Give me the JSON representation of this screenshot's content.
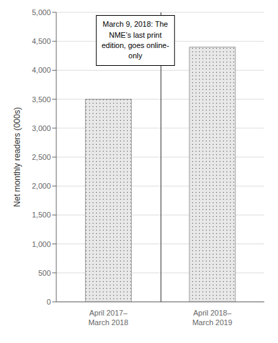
{
  "chart_data": {
    "type": "bar",
    "categories": [
      "April 2017–\nMarch 2018",
      "April 2018–\nMarch 2019"
    ],
    "values": [
      3500,
      4400
    ],
    "color": "#e8e8e8",
    "ylabel": "Net monthly readers (000s)",
    "ylim": [
      0,
      5000
    ],
    "yticks": [
      0,
      500,
      {
        "value": 1000,
        "label": "1,000"
      },
      {
        "value": 1500,
        "label": "1,500"
      },
      {
        "value": 2000,
        "label": "2,000"
      },
      {
        "value": 2500,
        "label": "2,500"
      },
      {
        "value": 3000,
        "label": "3,000"
      },
      {
        "value": 3500,
        "label": "3,500"
      },
      {
        "value": 4000,
        "label": "4,000"
      },
      {
        "value": 4500,
        "label": "4,500"
      },
      {
        "value": 5000,
        "label": "5,000"
      }
    ],
    "grid": true,
    "annotations": [
      "March 9, 2018: The\nNME’s last print\nedition, goes online-\nonly"
    ]
  }
}
